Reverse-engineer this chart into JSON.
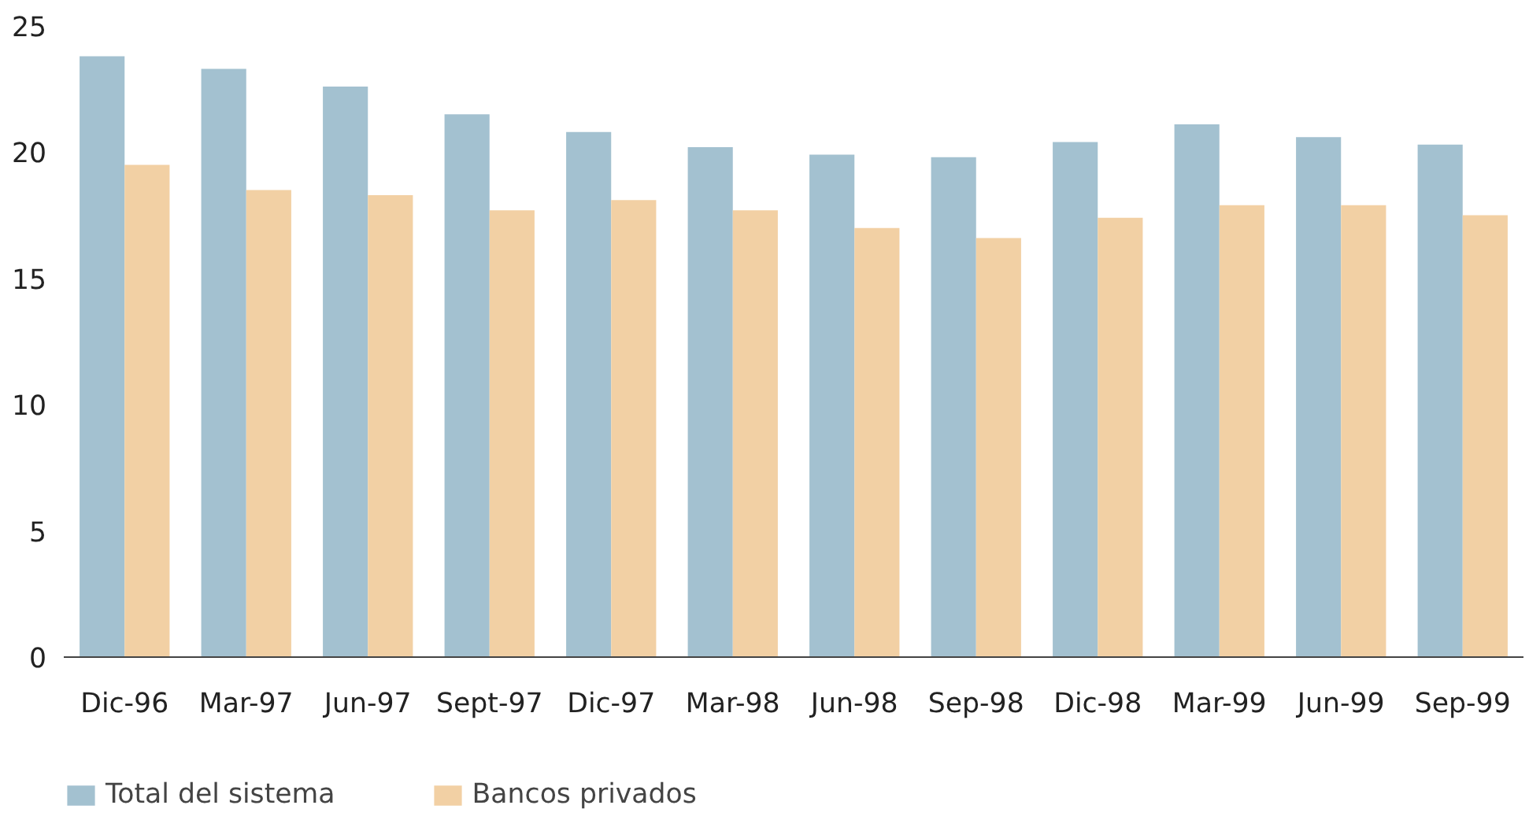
{
  "chart_data": {
    "type": "bar",
    "categories": [
      "Dic-96",
      "Mar-97",
      "Jun-97",
      "Sept-97",
      "Dic-97",
      "Mar-98",
      "Jun-98",
      "Sep-98",
      "Dic-98",
      "Mar-99",
      "Jun-99",
      "Sep-99"
    ],
    "series": [
      {
        "name": "Total del sistema",
        "color": "#a3c1d0",
        "values": [
          23.8,
          23.3,
          22.6,
          21.5,
          20.8,
          20.2,
          19.9,
          19.8,
          20.4,
          21.1,
          20.6,
          20.3
        ]
      },
      {
        "name": "Bancos privados",
        "color": "#f2d0a4",
        "values": [
          19.5,
          18.5,
          18.3,
          17.7,
          18.1,
          17.7,
          17.0,
          16.6,
          17.4,
          17.9,
          17.9,
          17.5
        ]
      }
    ],
    "ylim": [
      0,
      25
    ],
    "yticks": [
      0,
      5,
      10,
      15,
      20,
      25
    ],
    "grid": false,
    "legend": "bottom left"
  }
}
